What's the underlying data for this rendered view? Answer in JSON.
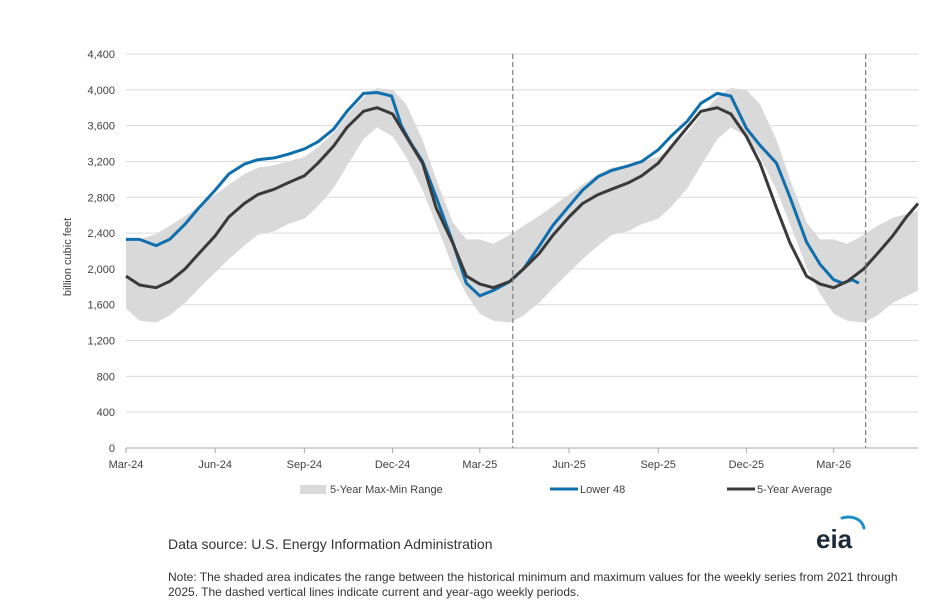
{
  "chart_data": {
    "type": "area",
    "ylabel": "billion cubic feet",
    "ylim": [
      0,
      4400
    ],
    "yticks": [
      "0",
      "400",
      "800",
      "1,200",
      "1,600",
      "2,000",
      "2,400",
      "2,800",
      "3,200",
      "3,600",
      "4,000",
      "4,400"
    ],
    "xlim": [
      "2024-03-01",
      "2026-05-27"
    ],
    "xticks": [
      {
        "date": "2024-03-01",
        "label": "Mar-24"
      },
      {
        "date": "2024-06-01",
        "label": "Jun-24"
      },
      {
        "date": "2024-09-01",
        "label": "Sep-24"
      },
      {
        "date": "2024-12-01",
        "label": "Dec-24"
      },
      {
        "date": "2025-03-01",
        "label": "Mar-25"
      },
      {
        "date": "2025-06-01",
        "label": "Jun-25"
      },
      {
        "date": "2025-09-01",
        "label": "Sep-25"
      },
      {
        "date": "2025-12-01",
        "label": "Dec-25"
      },
      {
        "date": "2026-03-01",
        "label": "Mar-26"
      }
    ],
    "vlines": [
      "2025-04-04",
      "2026-04-03"
    ],
    "grid": true,
    "legend_position": "bottom",
    "series": [
      {
        "name": "5-Year Max-Min Range",
        "kind": "band",
        "color": "#d9d9d9",
        "x": [
          "2024-03-01",
          "2024-03-15",
          "2024-04-01",
          "2024-04-15",
          "2024-05-01",
          "2024-05-15",
          "2024-06-01",
          "2024-06-15",
          "2024-07-01",
          "2024-07-15",
          "2024-08-01",
          "2024-08-15",
          "2024-09-01",
          "2024-09-15",
          "2024-10-01",
          "2024-10-15",
          "2024-11-01",
          "2024-11-15",
          "2024-12-01",
          "2024-12-15",
          "2025-01-01",
          "2025-01-15",
          "2025-02-01",
          "2025-02-15",
          "2025-03-01",
          "2025-03-15",
          "2025-04-01",
          "2025-04-15",
          "2025-05-01",
          "2025-05-15",
          "2025-06-01",
          "2025-06-15",
          "2025-07-01",
          "2025-07-15",
          "2025-08-01",
          "2025-08-15",
          "2025-09-01",
          "2025-09-15",
          "2025-10-01",
          "2025-10-15",
          "2025-11-01",
          "2025-11-15",
          "2025-12-01",
          "2025-12-15",
          "2026-01-01",
          "2026-01-15",
          "2026-02-01",
          "2026-02-15",
          "2026-03-01",
          "2026-03-15",
          "2026-04-01",
          "2026-04-15",
          "2026-05-01",
          "2026-05-27"
        ],
        "low": [
          1560,
          1420,
          1400,
          1480,
          1620,
          1780,
          1960,
          2110,
          2260,
          2380,
          2420,
          2500,
          2560,
          2700,
          2900,
          3150,
          3450,
          3580,
          3480,
          3250,
          2880,
          2500,
          2020,
          1720,
          1500,
          1420,
          1400,
          1480,
          1620,
          1780,
          1960,
          2110,
          2260,
          2380,
          2420,
          2500,
          2560,
          2700,
          2900,
          3150,
          3450,
          3580,
          3480,
          3250,
          2880,
          2500,
          2020,
          1720,
          1500,
          1420,
          1400,
          1480,
          1620,
          1760
        ],
        "high": [
          2350,
          2330,
          2390,
          2480,
          2590,
          2700,
          2830,
          2940,
          3060,
          3130,
          3160,
          3200,
          3250,
          3360,
          3520,
          3720,
          3920,
          4020,
          4000,
          3840,
          3440,
          3000,
          2520,
          2330,
          2330,
          2280,
          2380,
          2480,
          2590,
          2700,
          2830,
          2940,
          3060,
          3130,
          3160,
          3200,
          3250,
          3360,
          3520,
          3720,
          3920,
          4020,
          4000,
          3840,
          3440,
          3000,
          2520,
          2330,
          2330,
          2280,
          2380,
          2480,
          2570,
          2650
        ]
      },
      {
        "name": "Lower 48",
        "kind": "line",
        "color": "#0f6fad",
        "x": [
          "2024-03-01",
          "2024-03-15",
          "2024-04-01",
          "2024-04-15",
          "2024-05-01",
          "2024-05-15",
          "2024-06-01",
          "2024-06-15",
          "2024-07-01",
          "2024-07-15",
          "2024-08-01",
          "2024-08-15",
          "2024-09-01",
          "2024-09-15",
          "2024-10-01",
          "2024-10-15",
          "2024-11-01",
          "2024-11-15",
          "2024-11-30",
          "2024-12-10",
          "2024-12-20",
          "2025-01-01",
          "2025-01-15",
          "2025-02-01",
          "2025-02-15",
          "2025-03-01",
          "2025-03-15",
          "2025-04-01",
          "2025-04-15",
          "2025-05-01",
          "2025-05-15",
          "2025-06-01",
          "2025-06-15",
          "2025-07-01",
          "2025-07-15",
          "2025-08-01",
          "2025-08-15",
          "2025-09-01",
          "2025-09-15",
          "2025-10-01",
          "2025-10-15",
          "2025-11-01",
          "2025-11-15",
          "2025-12-01",
          "2025-12-15",
          "2026-01-01",
          "2026-01-15",
          "2026-02-01",
          "2026-02-15",
          "2026-03-01",
          "2026-03-10",
          "2026-03-20",
          "2026-03-27"
        ],
        "y": [
          2330,
          2330,
          2260,
          2330,
          2500,
          2680,
          2880,
          3060,
          3170,
          3220,
          3240,
          3280,
          3340,
          3420,
          3560,
          3760,
          3960,
          3970,
          3930,
          3600,
          3400,
          3200,
          2800,
          2300,
          1840,
          1700,
          1760,
          1860,
          2000,
          2250,
          2480,
          2700,
          2880,
          3030,
          3100,
          3150,
          3200,
          3330,
          3490,
          3650,
          3850,
          3960,
          3930,
          3570,
          3380,
          3180,
          2800,
          2300,
          2050,
          1880,
          1840,
          1880,
          1840
        ]
      },
      {
        "name": "5-Year Average",
        "kind": "line",
        "color": "#3a3a3a",
        "x": [
          "2024-03-01",
          "2024-03-15",
          "2024-04-01",
          "2024-04-15",
          "2024-05-01",
          "2024-05-15",
          "2024-06-01",
          "2024-06-15",
          "2024-07-01",
          "2024-07-15",
          "2024-08-01",
          "2024-08-15",
          "2024-09-01",
          "2024-09-15",
          "2024-10-01",
          "2024-10-15",
          "2024-11-01",
          "2024-11-15",
          "2024-12-01",
          "2024-12-15",
          "2025-01-01",
          "2025-01-15",
          "2025-02-01",
          "2025-02-15",
          "2025-03-01",
          "2025-03-15",
          "2025-04-01",
          "2025-04-15",
          "2025-05-01",
          "2025-05-15",
          "2025-06-01",
          "2025-06-15",
          "2025-07-01",
          "2025-07-15",
          "2025-08-01",
          "2025-08-15",
          "2025-09-01",
          "2025-09-15",
          "2025-10-01",
          "2025-10-15",
          "2025-11-01",
          "2025-11-15",
          "2025-12-01",
          "2025-12-15",
          "2026-01-01",
          "2026-01-15",
          "2026-02-01",
          "2026-02-15",
          "2026-03-01",
          "2026-03-15",
          "2026-04-01",
          "2026-04-15",
          "2026-05-01",
          "2026-05-15",
          "2026-05-27"
        ],
        "y": [
          1920,
          1820,
          1790,
          1860,
          2000,
          2170,
          2370,
          2580,
          2730,
          2830,
          2890,
          2960,
          3040,
          3180,
          3370,
          3580,
          3760,
          3800,
          3730,
          3480,
          3180,
          2680,
          2290,
          1920,
          1830,
          1790,
          1860,
          2000,
          2170,
          2370,
          2580,
          2730,
          2830,
          2890,
          2960,
          3040,
          3180,
          3370,
          3580,
          3760,
          3800,
          3730,
          3480,
          3180,
          2680,
          2290,
          1920,
          1830,
          1790,
          1860,
          2000,
          2170,
          2370,
          2580,
          2730
        ]
      }
    ]
  },
  "legend": {
    "range_label": "5-Year Max-Min Range",
    "lower48_label": "Lower 48",
    "avg_label": "5-Year Average"
  },
  "footer": {
    "source": "Data source: U.S. Energy Information Administration",
    "note": "Note: The shaded area indicates the range between the historical minimum and maximum values for the weekly series from 2021 through 2025. The dashed vertical lines indicate current and year-ago weekly periods.",
    "logo_text": "eia"
  }
}
